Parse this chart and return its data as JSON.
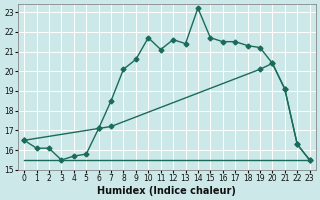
{
  "title": "",
  "xlabel": "Humidex (Indice chaleur)",
  "background_color": "#cce8e8",
  "grid_color": "#ffffff",
  "line_color": "#1a6b5a",
  "xlim": [
    -0.5,
    23.5
  ],
  "ylim": [
    15,
    23.4
  ],
  "yticks": [
    15,
    16,
    17,
    18,
    19,
    20,
    21,
    22,
    23
  ],
  "xticks": [
    0,
    1,
    2,
    3,
    4,
    5,
    6,
    7,
    8,
    9,
    10,
    11,
    12,
    13,
    14,
    15,
    16,
    17,
    18,
    19,
    20,
    21,
    22,
    23
  ],
  "line1_x": [
    0,
    1,
    2,
    3,
    4,
    5,
    6,
    7,
    8,
    9,
    10,
    11,
    12,
    13,
    14,
    15,
    16,
    17,
    18,
    19,
    20,
    21,
    22,
    23
  ],
  "line1_y": [
    16.5,
    16.1,
    16.1,
    15.5,
    15.7,
    15.8,
    17.1,
    18.5,
    20.1,
    20.6,
    21.7,
    21.1,
    21.6,
    21.4,
    23.2,
    21.7,
    21.5,
    21.5,
    21.3,
    21.2,
    20.4,
    19.1,
    16.3,
    15.5
  ],
  "line2_x": [
    0,
    6,
    7,
    19,
    20,
    21,
    22,
    23
  ],
  "line2_y": [
    16.5,
    17.1,
    17.2,
    20.1,
    20.4,
    19.1,
    16.3,
    15.5
  ],
  "line3_x": [
    0,
    23
  ],
  "line3_y": [
    15.5,
    15.5
  ],
  "marker_size": 2.5,
  "linewidth": 1.0,
  "xlabel_fontsize": 7,
  "tick_fontsize": 5.5
}
